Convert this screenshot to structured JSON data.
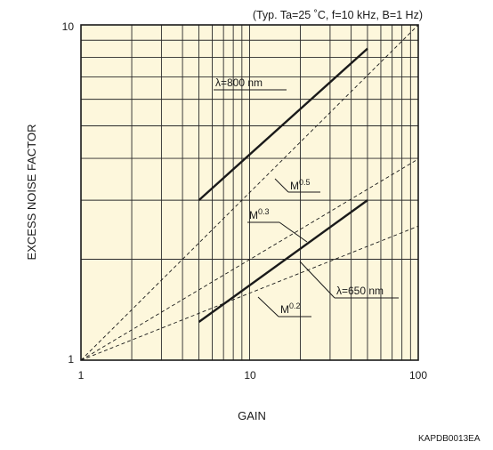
{
  "chart_data": {
    "type": "line",
    "title": "(Typ. Ta=25 ˚C, f=10 kHz, B=1 Hz)",
    "xlabel": "GAIN",
    "ylabel": "EXCESS NOISE FACTOR",
    "xscale": "log",
    "yscale": "log",
    "xlim": [
      1,
      100
    ],
    "ylim": [
      1,
      10
    ],
    "x_ticks": [
      "1",
      "10",
      "100"
    ],
    "y_ticks": [
      "1",
      "10"
    ],
    "grid": true,
    "background": "#fdf7dc",
    "series": [
      {
        "name": "λ=800 nm",
        "style": "solid",
        "points": [
          [
            5,
            3.0
          ],
          [
            50,
            8.5
          ]
        ]
      },
      {
        "name": "λ=650 nm",
        "style": "solid",
        "points": [
          [
            5,
            1.3
          ],
          [
            50,
            3.0
          ]
        ]
      },
      {
        "name": "M0.5",
        "style": "dashed",
        "points": [
          [
            1,
            1.0
          ],
          [
            100,
            10.0
          ]
        ]
      },
      {
        "name": "M0.3",
        "style": "dashed",
        "points": [
          [
            1,
            1.0
          ],
          [
            100,
            3.98
          ]
        ]
      },
      {
        "name": "M0.2",
        "style": "dashed",
        "points": [
          [
            1,
            1.0
          ],
          [
            100,
            2.51
          ]
        ]
      }
    ],
    "annotations": {
      "l800": "λ=800 nm",
      "l650": "λ=650 nm",
      "m05_base": "M",
      "m05_exp": "0.5",
      "m03_base": "M",
      "m03_exp": "0.3",
      "m02_base": "M",
      "m02_exp": "0.2"
    }
  },
  "figure_code": "KAPDB0013EA"
}
